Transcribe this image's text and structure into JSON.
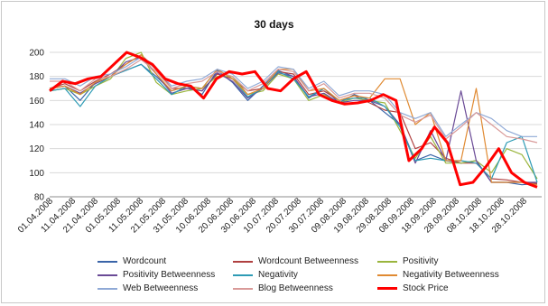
{
  "chart_data": {
    "type": "line",
    "title": "30 days",
    "xlabel": "",
    "ylabel": "",
    "ylim": [
      80,
      200
    ],
    "yticks": [
      80,
      100,
      120,
      140,
      160,
      180,
      200
    ],
    "grid": "horizontal",
    "legend_position": "bottom",
    "date_ticks": [
      "01.04.2008",
      "11.04.2008",
      "21.04.2008",
      "01.05.2008",
      "11.05.2008",
      "21.05.2008",
      "31.05.2008",
      "10.06.2008",
      "20.06.2008",
      "30.06.2008",
      "10.07.2008",
      "20.07.2008",
      "30.07.2008",
      "09.08.2008",
      "19.08.2008",
      "29.08.2008",
      "08.09.2008",
      "18.09.2008",
      "28.09.2008",
      "08.10.2008",
      "18.10.2008",
      "28.10.2008"
    ],
    "series": [
      {
        "name": "Wordcount",
        "color": "#3a64a8",
        "values": [
          170,
          172,
          160,
          175,
          180,
          185,
          190,
          180,
          168,
          172,
          165,
          185,
          175,
          160,
          172,
          185,
          180,
          162,
          170,
          158,
          165,
          160,
          150,
          140,
          110,
          115,
          110,
          108,
          110,
          92,
          92,
          90,
          91
        ]
      },
      {
        "name": "Wordcount Betweenness",
        "color": "#b04040",
        "values": [
          170,
          174,
          168,
          176,
          182,
          190,
          198,
          186,
          170,
          170,
          168,
          182,
          178,
          168,
          170,
          184,
          182,
          165,
          168,
          160,
          164,
          158,
          152,
          150,
          120,
          125,
          112,
          108,
          108,
          95,
          94,
          92,
          91
        ]
      },
      {
        "name": "Positivity",
        "color": "#9ab53d",
        "values": [
          168,
          170,
          165,
          172,
          178,
          195,
          200,
          175,
          165,
          168,
          170,
          180,
          180,
          165,
          168,
          182,
          178,
          160,
          165,
          158,
          162,
          160,
          158,
          135,
          112,
          130,
          108,
          108,
          110,
          100,
          120,
          115,
          95
        ]
      },
      {
        "name": "Positivity Betweenness",
        "color": "#6a4a96",
        "values": [
          170,
          172,
          166,
          174,
          180,
          192,
          196,
          182,
          166,
          170,
          168,
          183,
          176,
          162,
          170,
          183,
          180,
          163,
          166,
          158,
          160,
          160,
          155,
          140,
          108,
          135,
          110,
          168,
          110,
          92,
          92,
          92,
          92
        ]
      },
      {
        "name": "Negativity",
        "color": "#2e9bb5",
        "values": [
          168,
          170,
          155,
          172,
          180,
          185,
          190,
          178,
          165,
          172,
          170,
          186,
          178,
          163,
          170,
          184,
          178,
          163,
          170,
          160,
          162,
          162,
          155,
          138,
          110,
          112,
          110,
          110,
          108,
          95,
          125,
          130,
          92
        ]
      },
      {
        "name": "Negativity Betweenness",
        "color": "#e08a32",
        "values": [
          170,
          172,
          165,
          175,
          180,
          190,
          198,
          182,
          168,
          172,
          170,
          186,
          178,
          165,
          170,
          186,
          186,
          168,
          170,
          160,
          164,
          162,
          178,
          178,
          140,
          150,
          110,
          110,
          170,
          92,
          92,
          92,
          90
        ]
      },
      {
        "name": "Web Betweenness",
        "color": "#8fa9d6",
        "values": [
          178,
          178,
          172,
          180,
          182,
          188,
          196,
          186,
          172,
          176,
          178,
          186,
          182,
          170,
          176,
          188,
          186,
          170,
          176,
          164,
          168,
          168,
          165,
          150,
          145,
          150,
          130,
          140,
          150,
          145,
          135,
          130,
          130
        ]
      },
      {
        "name": "Blog Betweenness",
        "color": "#d99a99",
        "values": [
          176,
          176,
          168,
          178,
          180,
          186,
          194,
          184,
          170,
          174,
          176,
          184,
          180,
          168,
          174,
          186,
          184,
          168,
          174,
          162,
          166,
          166,
          162,
          148,
          142,
          148,
          128,
          138,
          150,
          140,
          130,
          128,
          125
        ]
      },
      {
        "name": "Stock Price",
        "color": "#ff0000",
        "values": [
          168,
          176,
          174,
          178,
          180,
          190,
          200,
          196,
          190,
          178,
          174,
          172,
          162,
          178,
          184,
          182,
          184,
          170,
          168,
          178,
          184,
          165,
          160,
          157,
          158,
          160,
          165,
          160,
          110,
          120,
          138,
          125,
          90,
          92,
          105,
          120,
          100,
          92,
          88
        ]
      }
    ]
  }
}
